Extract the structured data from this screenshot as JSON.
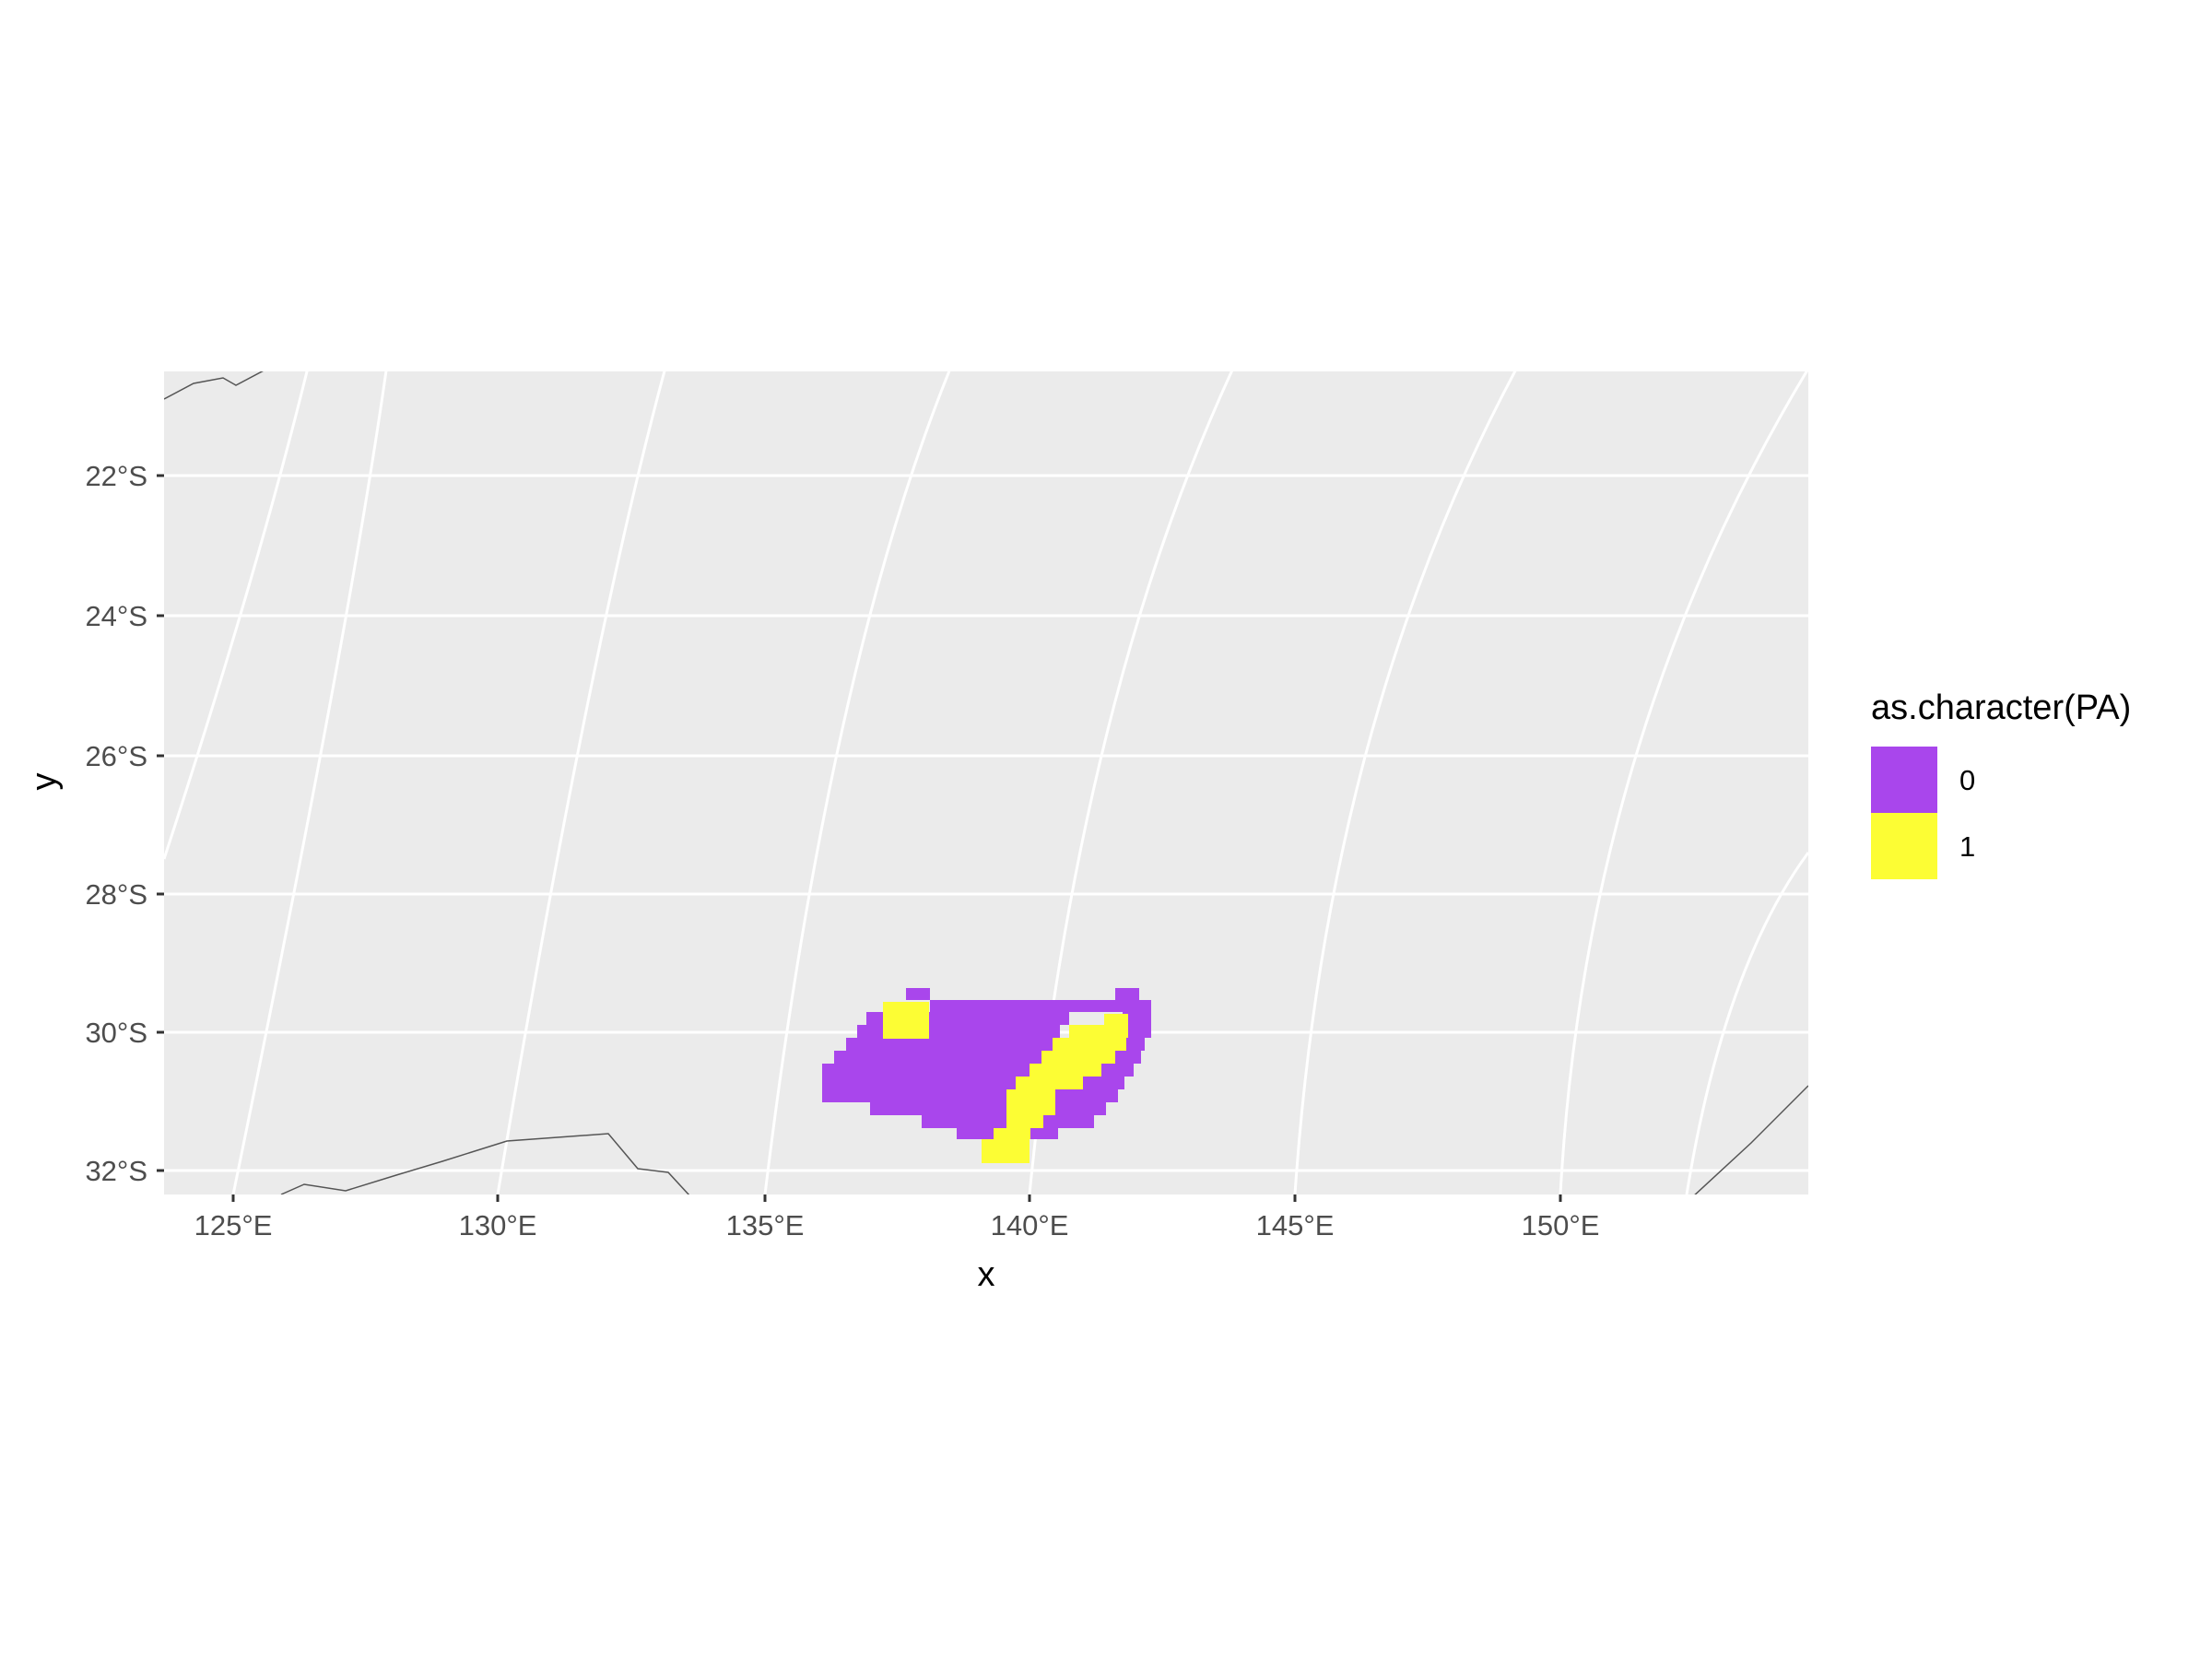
{
  "chart_data": {
    "type": "heatmap",
    "title": "",
    "xlabel": "x",
    "ylabel": "y",
    "x_ticks": [
      "125°E",
      "130°E",
      "135°E",
      "140°E",
      "145°E",
      "150°E"
    ],
    "y_ticks": [
      "22°S",
      "24°S",
      "26°S",
      "28°S",
      "30°S",
      "32°S"
    ],
    "grid": true,
    "panel_background": "#EBEBEB",
    "gridline_color": "#FFFFFF",
    "coastline_color": "#555555",
    "legend": {
      "title": "as.character(PA)",
      "position": "right",
      "items": [
        {
          "label": "0",
          "color": "#A946EC"
        },
        {
          "label": "1",
          "color": "#FCFD34"
        }
      ]
    },
    "raster_summary": {
      "value_0_region": "approx. 136°E–142°E, 29.5°S–31.8°S",
      "value_1_region": "small patch near 137.5°E 29.8°S; diagonal band from ~141.5°E 30°S to ~139.5°E 31.8°S"
    }
  }
}
